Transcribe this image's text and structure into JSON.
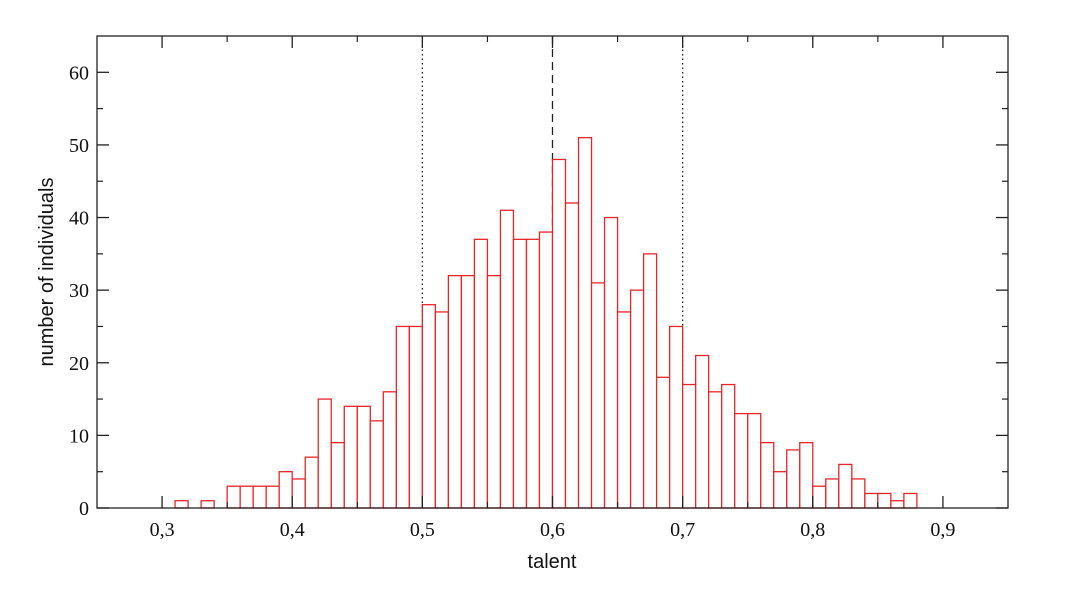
{
  "chart_data": {
    "type": "histogram",
    "xlabel": "talent",
    "ylabel": "number of individuals",
    "bins": [
      0.31,
      0.32,
      0.33,
      0.34,
      0.35,
      0.36,
      0.37,
      0.38,
      0.39,
      0.4,
      0.41,
      0.42,
      0.43,
      0.44,
      0.45,
      0.46,
      0.47,
      0.48,
      0.49,
      0.5,
      0.51,
      0.52,
      0.53,
      0.54,
      0.55,
      0.56,
      0.57,
      0.58,
      0.59,
      0.6,
      0.61,
      0.62,
      0.63,
      0.64,
      0.65,
      0.66,
      0.67,
      0.68,
      0.69,
      0.7,
      0.71,
      0.72,
      0.73,
      0.74,
      0.75,
      0.76,
      0.77,
      0.78,
      0.79,
      0.8,
      0.81,
      0.82,
      0.83,
      0.84,
      0.85,
      0.86,
      0.87,
      0.88
    ],
    "counts": [
      1,
      0,
      1,
      0,
      3,
      3,
      3,
      3,
      5,
      4,
      7,
      15,
      9,
      14,
      14,
      12,
      16,
      25,
      25,
      28,
      27,
      32,
      32,
      37,
      32,
      41,
      37,
      37,
      38,
      48,
      42,
      51,
      31,
      40,
      27,
      30,
      35,
      18,
      25,
      17,
      21,
      16,
      17,
      13,
      13,
      9,
      5,
      8,
      9,
      3,
      4,
      6,
      4,
      2,
      2,
      1,
      2
    ],
    "color": "#e8262a",
    "xlim": [
      0.25,
      0.95
    ],
    "xticks": [
      {
        "value": 0.3,
        "label": "0,3"
      },
      {
        "value": 0.4,
        "label": "0,4"
      },
      {
        "value": 0.5,
        "label": "0,5"
      },
      {
        "value": 0.6,
        "label": "0,6"
      },
      {
        "value": 0.7,
        "label": "0,7"
      },
      {
        "value": 0.8,
        "label": "0,8"
      },
      {
        "value": 0.9,
        "label": "0,9"
      }
    ],
    "ylim": [
      0,
      65
    ],
    "yticks": [
      0,
      10,
      20,
      30,
      40,
      50,
      60
    ],
    "vlines": [
      {
        "value": 0.5,
        "style": "dotted"
      },
      {
        "value": 0.6,
        "style": "dashed"
      },
      {
        "value": 0.7,
        "style": "dotted"
      }
    ]
  }
}
